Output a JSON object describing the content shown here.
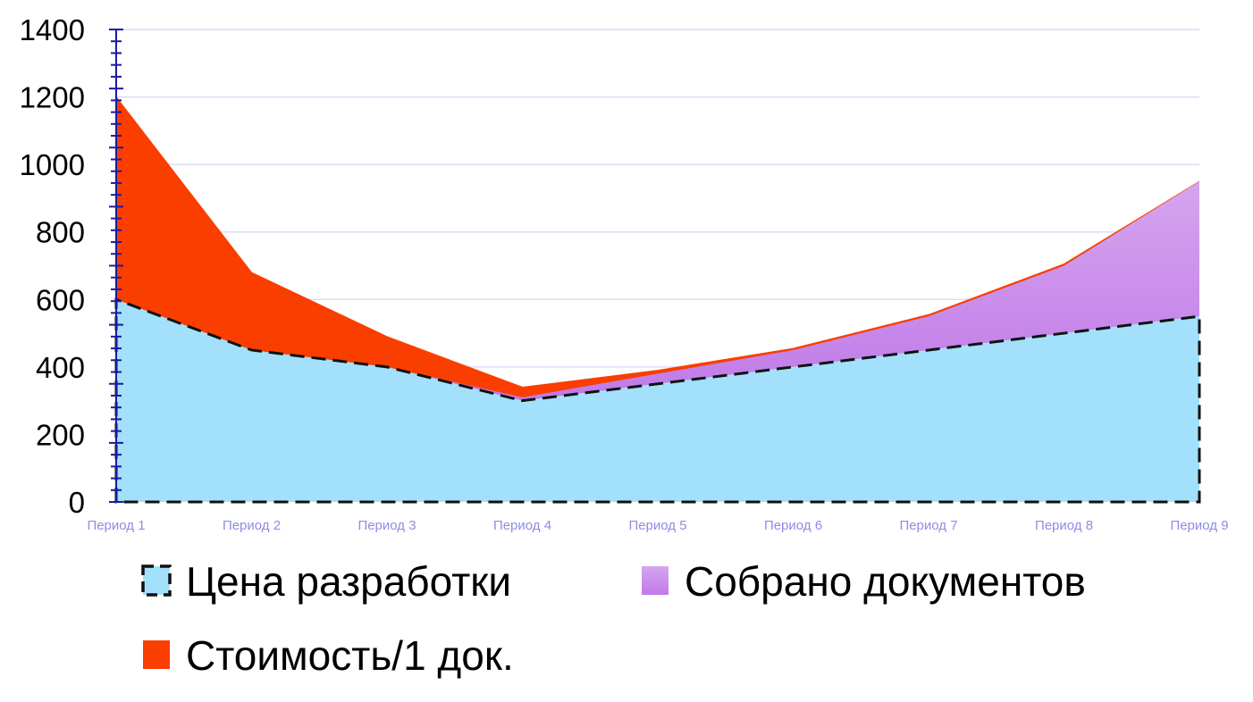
{
  "chart_data": {
    "type": "area",
    "stacked": true,
    "categories": [
      "Период 1",
      "Период 2",
      "Период 3",
      "Период 4",
      "Период 5",
      "Период 6",
      "Период 7",
      "Период 8",
      "Период 9"
    ],
    "series": [
      {
        "name": "Цена разработки",
        "values": [
          600,
          450,
          400,
          300,
          350,
          400,
          450,
          500,
          550
        ],
        "color": "#a3e0fb",
        "border": "dashed-black"
      },
      {
        "name": "Собрано документов",
        "values": [
          0,
          0,
          0,
          10,
          30,
          50,
          100,
          200,
          400
        ],
        "color": "#c98ae8"
      },
      {
        "name": "Стоимость/1 док.",
        "values": [
          600,
          230,
          90,
          30,
          10,
          5,
          5,
          5,
          0
        ],
        "color": "#f93e00"
      }
    ],
    "ylim": [
      0,
      1400
    ],
    "yticks": [
      "0",
      "200",
      "400",
      "600",
      "800",
      "1000",
      "1200",
      "1400"
    ],
    "grid": true,
    "legend_position": "bottom",
    "colors": {
      "grid": "#dcdcf5",
      "axis": "#1a1a9e",
      "xtick_text": "#8c8ce6",
      "ytick_text": "#000000"
    }
  }
}
